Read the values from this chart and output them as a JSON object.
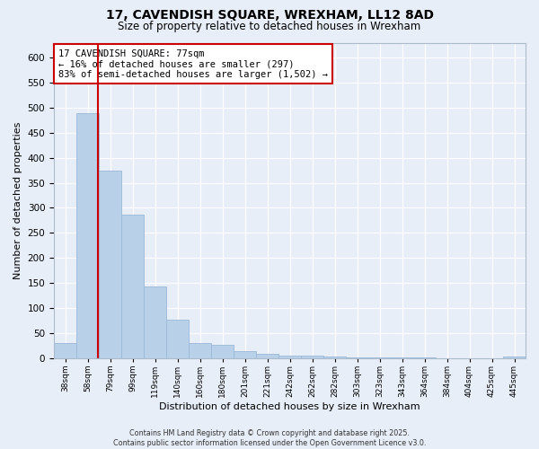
{
  "title": "17, CAVENDISH SQUARE, WREXHAM, LL12 8AD",
  "subtitle": "Size of property relative to detached houses in Wrexham",
  "xlabel": "Distribution of detached houses by size in Wrexham",
  "ylabel": "Number of detached properties",
  "footer_line1": "Contains HM Land Registry data © Crown copyright and database right 2025.",
  "footer_line2": "Contains public sector information licensed under the Open Government Licence v3.0.",
  "annotation_line1": "17 CAVENDISH SQUARE: 77sqm",
  "annotation_line2": "← 16% of detached houses are smaller (297)",
  "annotation_line3": "83% of semi-detached houses are larger (1,502) →",
  "property_size_sqm": 77,
  "bin_labels": [
    "38sqm",
    "58sqm",
    "79sqm",
    "99sqm",
    "119sqm",
    "140sqm",
    "160sqm",
    "180sqm",
    "201sqm",
    "221sqm",
    "242sqm",
    "262sqm",
    "282sqm",
    "303sqm",
    "323sqm",
    "343sqm",
    "364sqm",
    "384sqm",
    "404sqm",
    "425sqm",
    "445sqm"
  ],
  "bar_values": [
    30,
    490,
    375,
    287,
    143,
    77,
    30,
    26,
    14,
    8,
    5,
    4,
    3,
    2,
    1,
    1,
    1,
    0,
    0,
    0,
    3
  ],
  "bar_color": "#b8d0e8",
  "bar_edgecolor": "#9ab8d8",
  "vline_color": "#cc0000",
  "annotation_box_edgecolor": "#cc0000",
  "background_color": "#e8eef8",
  "grid_color": "#ffffff",
  "ylim": [
    0,
    630
  ],
  "yticks": [
    0,
    50,
    100,
    150,
    200,
    250,
    300,
    350,
    400,
    450,
    500,
    550,
    600
  ]
}
